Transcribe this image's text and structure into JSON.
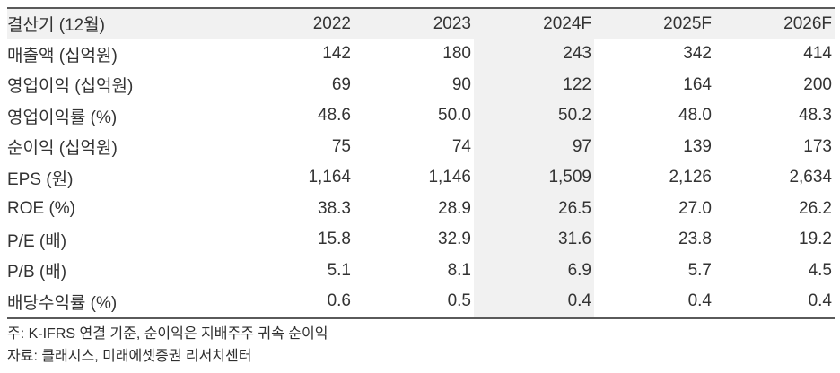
{
  "table": {
    "title_column_header": "결산기 (12월)",
    "year_headers": [
      "2022",
      "2023",
      "2024F",
      "2025F",
      "2026F"
    ],
    "highlight_column": "2024F",
    "rows": [
      {
        "label": "매출액 (십억원)",
        "values": [
          "142",
          "180",
          "243",
          "342",
          "414"
        ]
      },
      {
        "label": "영업이익 (십억원)",
        "values": [
          "69",
          "90",
          "122",
          "164",
          "200"
        ]
      },
      {
        "label": "영업이익률 (%)",
        "values": [
          "48.6",
          "50.0",
          "50.2",
          "48.0",
          "48.3"
        ]
      },
      {
        "label": "순이익 (십억원)",
        "values": [
          "75",
          "74",
          "97",
          "139",
          "173"
        ]
      },
      {
        "label": "EPS (원)",
        "values": [
          "1,164",
          "1,146",
          "1,509",
          "2,126",
          "2,634"
        ]
      },
      {
        "label": "ROE (%)",
        "values": [
          "38.3",
          "28.9",
          "26.5",
          "27.0",
          "26.2"
        ]
      },
      {
        "label": "P/E (배)",
        "values": [
          "15.8",
          "32.9",
          "31.6",
          "23.8",
          "19.2"
        ]
      },
      {
        "label": "P/B (배)",
        "values": [
          "5.1",
          "8.1",
          "6.9",
          "5.7",
          "4.5"
        ]
      },
      {
        "label": "배당수익률 (%)",
        "values": [
          "0.6",
          "0.5",
          "0.4",
          "0.4",
          "0.4"
        ]
      }
    ],
    "colors": {
      "header_bg": "#f1f1f1",
      "highlight_bg": "#f1f1f1",
      "border": "#5a5a5a",
      "text": "#333333"
    }
  },
  "footnotes": {
    "note": "주: K-IFRS 연결 기준, 순이익은 지배주주 귀속 순이익",
    "source": "자료: 클래시스, 미래에셋증권 리서치센터"
  }
}
